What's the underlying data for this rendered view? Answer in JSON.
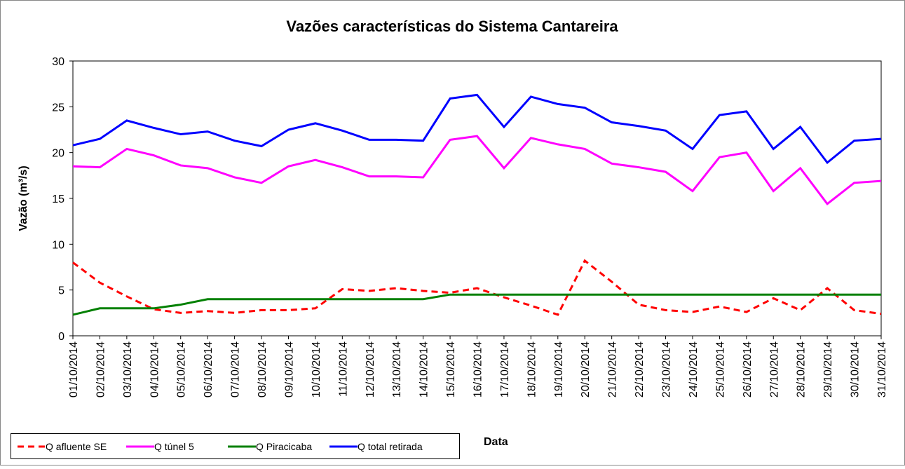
{
  "chart_data": {
    "type": "line",
    "title": "Vazões características do Sistema Cantareira",
    "x_label": "Data",
    "y_label": "Vazão (m³/s)",
    "categories": [
      "01/10/2014",
      "02/10/2014",
      "03/10/2014",
      "04/10/2014",
      "05/10/2014",
      "06/10/2014",
      "07/10/2014",
      "08/10/2014",
      "09/10/2014",
      "10/10/2014",
      "11/10/2014",
      "12/10/2014",
      "13/10/2014",
      "14/10/2014",
      "15/10/2014",
      "16/10/2014",
      "17/10/2014",
      "18/10/2014",
      "19/10/2014",
      "20/10/2014",
      "21/10/2014",
      "22/10/2014",
      "23/10/2014",
      "24/10/2014",
      "25/10/2014",
      "26/10/2014",
      "27/10/2014",
      "28/10/2014",
      "29/10/2014",
      "30/10/2014",
      "31/10/2014"
    ],
    "series": [
      {
        "name": "Q afluente SE",
        "color": "#ff0000",
        "dashed": true,
        "values": [
          8.0,
          5.8,
          4.3,
          2.9,
          2.5,
          2.7,
          2.5,
          2.8,
          2.8,
          3.0,
          5.1,
          4.9,
          5.2,
          4.9,
          4.7,
          5.2,
          4.2,
          3.3,
          2.3,
          8.2,
          5.9,
          3.4,
          2.8,
          2.6,
          3.2,
          2.6,
          4.1,
          2.8,
          5.2,
          2.8,
          2.4
        ]
      },
      {
        "name": "Q túnel 5",
        "color": "#ff00ff",
        "values": [
          18.5,
          18.4,
          20.4,
          19.7,
          18.6,
          18.3,
          17.3,
          16.7,
          18.5,
          19.2,
          18.4,
          17.4,
          17.4,
          17.3,
          21.4,
          21.8,
          18.3,
          21.6,
          20.9,
          20.4,
          18.8,
          18.4,
          17.9,
          15.8,
          19.5,
          20.0,
          15.8,
          18.3,
          14.4,
          16.7,
          16.9
        ]
      },
      {
        "name": "Q Piracicaba",
        "color": "#008000",
        "values": [
          2.3,
          3,
          3,
          3,
          3.4,
          4,
          4,
          4,
          4,
          4,
          4,
          4,
          4,
          4,
          4.5,
          4.5,
          4.5,
          4.5,
          4.5,
          4.5,
          4.5,
          4.5,
          4.5,
          4.5,
          4.5,
          4.5,
          4.5,
          4.5,
          4.5,
          4.5,
          4.5
        ]
      },
      {
        "name": "Q total retirada",
        "color": "#0000ff",
        "values": [
          20.8,
          21.5,
          23.5,
          22.7,
          22.0,
          22.3,
          21.3,
          20.7,
          22.5,
          23.2,
          22.4,
          21.4,
          21.4,
          21.3,
          25.9,
          26.3,
          22.8,
          26.1,
          25.3,
          24.9,
          23.3,
          22.9,
          22.4,
          20.4,
          24.1,
          24.5,
          20.4,
          22.8,
          18.9,
          21.3,
          21.5
        ]
      }
    ],
    "ylim": [
      0,
      30
    ],
    "yticks": [
      0,
      5,
      10,
      15,
      20,
      25,
      30
    ],
    "grid": false,
    "legend": "bottom-left"
  }
}
